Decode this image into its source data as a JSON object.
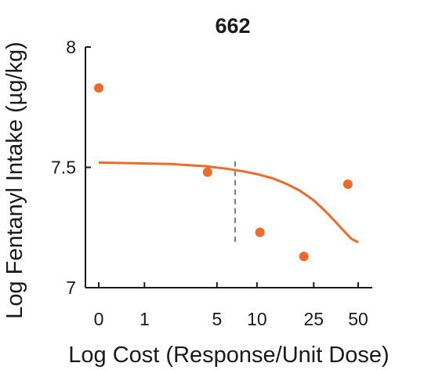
{
  "chart_data": {
    "type": "scatter",
    "title": "662",
    "xlabel": "Log Cost (Response/Unit Dose)",
    "ylabel": "Log Fentanyl Intake (µg/kg)",
    "x_scale": "log(x + 1)",
    "xlim": [
      0,
      60
    ],
    "ylim": [
      7,
      8
    ],
    "x_ticks": [
      0,
      1,
      5,
      10,
      25,
      50
    ],
    "x_tick_labels": [
      "0",
      "1",
      "5",
      "10",
      "25",
      "50"
    ],
    "y_ticks": [
      7,
      7.5,
      8
    ],
    "y_tick_labels": [
      "7",
      "7.5",
      "8"
    ],
    "grid": false,
    "legend": "none",
    "colors": {
      "points": "#ee6a2a",
      "fit": "#ee6a2a",
      "marker": "#7f7f7f",
      "axes": "#1a1a1a"
    },
    "series": [
      {
        "kind": "points",
        "x": [
          0,
          4.2,
          10.5,
          21.4,
          42.6
        ],
        "y": [
          7.83,
          7.48,
          7.23,
          7.13,
          7.43
        ]
      },
      {
        "kind": "fit",
        "x": [
          0,
          2,
          4,
          6,
          8,
          10,
          13,
          16,
          20,
          25,
          30,
          35,
          40,
          45,
          50
        ],
        "y": [
          7.52,
          7.514,
          7.505,
          7.494,
          7.483,
          7.472,
          7.454,
          7.433,
          7.404,
          7.363,
          7.318,
          7.275,
          7.236,
          7.203,
          7.189
        ]
      }
    ],
    "reference_line": {
      "x": 6.9,
      "y_range": [
        7.19,
        7.53
      ]
    }
  }
}
